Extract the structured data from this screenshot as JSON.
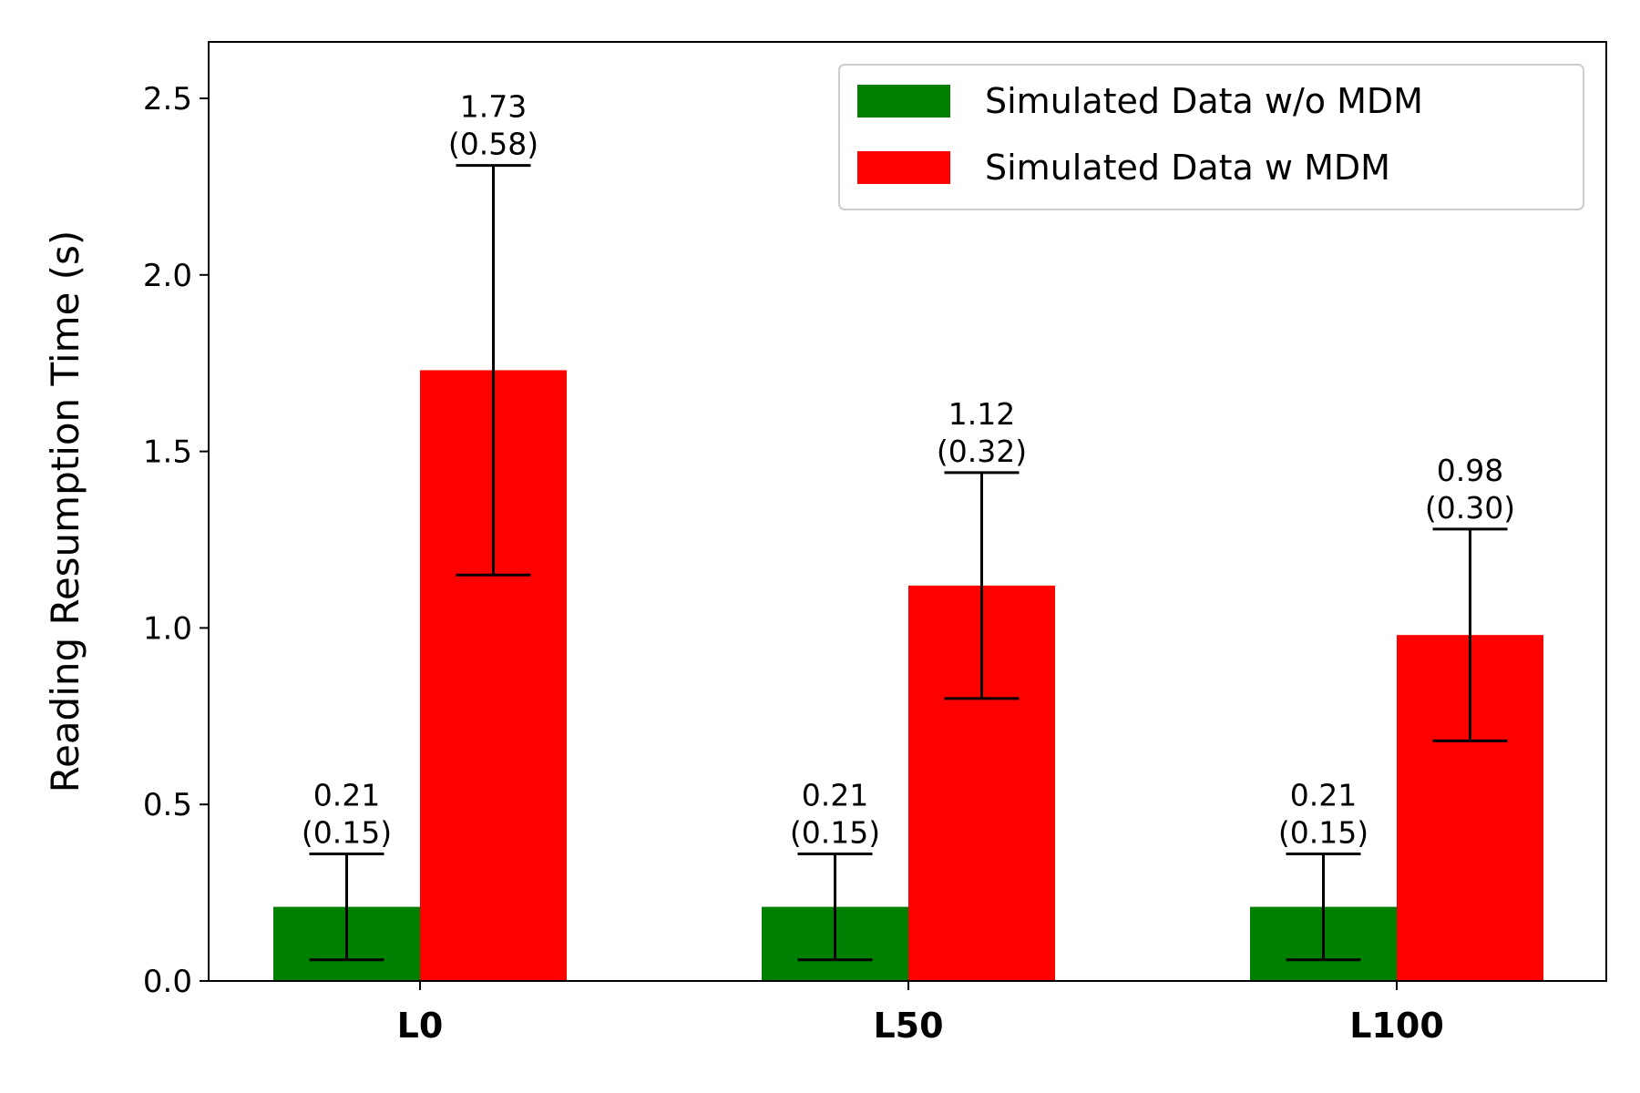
{
  "chart_data": {
    "type": "bar",
    "categories": [
      "L0",
      "L50",
      "L100"
    ],
    "series": [
      {
        "name": "Simulated Data w/o MDM",
        "color": "#008000",
        "values": [
          0.21,
          0.21,
          0.21
        ],
        "errors": [
          0.15,
          0.15,
          0.15
        ],
        "value_labels": [
          "0.21",
          "0.21",
          "0.21"
        ],
        "error_labels": [
          "(0.15)",
          "(0.15)",
          "(0.15)"
        ]
      },
      {
        "name": "Simulated Data w MDM",
        "color": "#ff0000",
        "values": [
          1.73,
          1.12,
          0.98
        ],
        "errors": [
          0.58,
          0.32,
          0.3
        ],
        "value_labels": [
          "1.73",
          "1.12",
          "0.98"
        ],
        "error_labels": [
          "(0.58)",
          "(0.32)",
          "(0.30)"
        ]
      }
    ],
    "ylabel": "Reading Resumption Time (s)",
    "xlabel": "",
    "ylim": [
      0,
      2.66
    ],
    "yticks": [
      "0.0",
      "0.5",
      "1.0",
      "1.5",
      "2.0",
      "2.5"
    ],
    "legend_position": "top-right",
    "grid": false
  }
}
